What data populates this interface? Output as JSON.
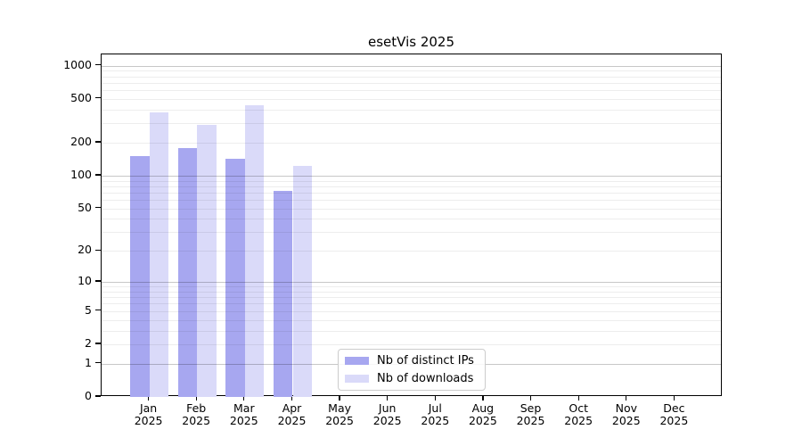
{
  "chart_data": {
    "type": "bar",
    "title": "esetVis 2025",
    "categories": [
      "Jan",
      "Feb",
      "Mar",
      "Apr",
      "May",
      "Jun",
      "Jul",
      "Aug",
      "Sep",
      "Oct",
      "Nov",
      "Dec"
    ],
    "x_year": "2025",
    "series": [
      {
        "name": "Nb of distinct IPs",
        "color": "#a7a7f0",
        "values": [
          150,
          180,
          142,
          73,
          null,
          null,
          null,
          null,
          null,
          null,
          null,
          null
        ]
      },
      {
        "name": "Nb of downloads",
        "color": "#dadaf9",
        "values": [
          375,
          288,
          440,
          122,
          null,
          null,
          null,
          null,
          null,
          null,
          null,
          null
        ]
      }
    ],
    "xlabel": "",
    "ylabel": "",
    "y_scale": "log1p",
    "y_ticks": [
      0,
      1,
      2,
      5,
      10,
      20,
      50,
      100,
      200,
      500,
      1000
    ],
    "y_minor_gridlines": [
      2,
      3,
      4,
      5,
      6,
      7,
      8,
      9,
      20,
      30,
      40,
      50,
      60,
      70,
      80,
      90,
      200,
      300,
      400,
      500,
      600,
      700,
      800,
      900
    ],
    "y_major_gridlines": [
      1,
      10,
      100,
      1000
    ],
    "ylim": [
      0,
      1263
    ],
    "grid": "both",
    "legend_position": "lower center",
    "colors": {
      "background": "#ffffff",
      "axis": "#000000",
      "major_grid": "rgba(0,0,0,0.22)",
      "minor_grid": "rgba(0,0,0,0.07)",
      "legend_border": "#cccccc"
    }
  }
}
